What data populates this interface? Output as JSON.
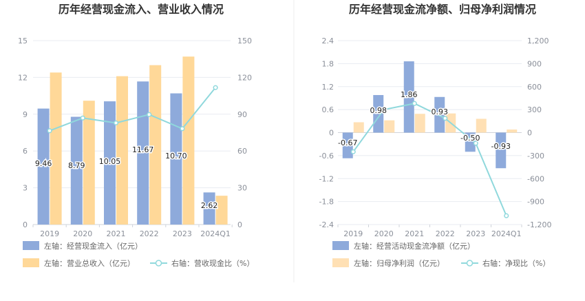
{
  "chart_data": [
    {
      "type": "bar",
      "title": "历年经营现金流入、营业收入情况",
      "categories": [
        "2019",
        "2020",
        "2021",
        "2022",
        "2023",
        "2024Q1"
      ],
      "left_ticks": [
        "15",
        "12",
        "9",
        "6",
        "3",
        "0"
      ],
      "right_ticks": [
        "150",
        "120",
        "90",
        "60",
        "30",
        "0"
      ],
      "ylim_left": [
        0,
        15
      ],
      "ylim_right": [
        0,
        150
      ],
      "grid": true,
      "legend_position": "bottom",
      "series": [
        {
          "name": "左轴：经营现金流入（亿元）",
          "type": "bar",
          "axis": "left",
          "color": "#8eaadb",
          "values": [
            9.46,
            8.79,
            10.05,
            11.67,
            10.7,
            2.62
          ],
          "labels": [
            "9.46",
            "8.79",
            "10.05",
            "11.67",
            "10.70",
            "2.62"
          ]
        },
        {
          "name": "左轴：营业总收入（亿元）",
          "type": "bar",
          "axis": "left",
          "color": "#ffd898",
          "values": [
            12.4,
            10.1,
            12.1,
            13.0,
            13.7,
            2.35
          ]
        },
        {
          "name": "右轴：营收现金比（%）",
          "type": "line",
          "axis": "right",
          "color": "#8fd8dc",
          "values": [
            76.5,
            86.9,
            82.9,
            89.7,
            78.2,
            111.7
          ]
        }
      ]
    },
    {
      "type": "bar",
      "title": "历年经营现金流净额、归母净利润情况",
      "categories": [
        "2019",
        "2020",
        "2021",
        "2022",
        "2023",
        "2024Q1"
      ],
      "left_ticks": [
        "2.4",
        "1.8",
        "1.2",
        "0.6",
        "0",
        "-0.6",
        "-1.2",
        "-1.8",
        "-2.4"
      ],
      "right_ticks": [
        "1,200",
        "900",
        "600",
        "300",
        "0",
        "-300",
        "-600",
        "-900",
        "-1,200"
      ],
      "ylim_left": [
        -2.4,
        2.4
      ],
      "ylim_right": [
        -1200,
        1200
      ],
      "grid": true,
      "legend_position": "bottom",
      "series": [
        {
          "name": "左轴：经营活动现金流净额（亿元）",
          "type": "bar",
          "axis": "left",
          "color": "#8eaadb",
          "values": [
            -0.67,
            0.98,
            1.86,
            0.93,
            -0.5,
            -0.93
          ],
          "labels": [
            "-0.67",
            "0.98",
            "1.86",
            "0.93",
            "-0.50",
            "-0.93"
          ]
        },
        {
          "name": "左轴：归母净利润（亿元）",
          "type": "bar",
          "axis": "left",
          "color": "#ffe0b4",
          "values": [
            0.27,
            0.32,
            0.49,
            0.5,
            0.36,
            0.08
          ]
        },
        {
          "name": "右轴：净现比（%）",
          "type": "line",
          "axis": "right",
          "color": "#8fd8dc",
          "values": [
            -250,
            300,
            380,
            186,
            -139,
            -1085
          ]
        }
      ]
    }
  ]
}
